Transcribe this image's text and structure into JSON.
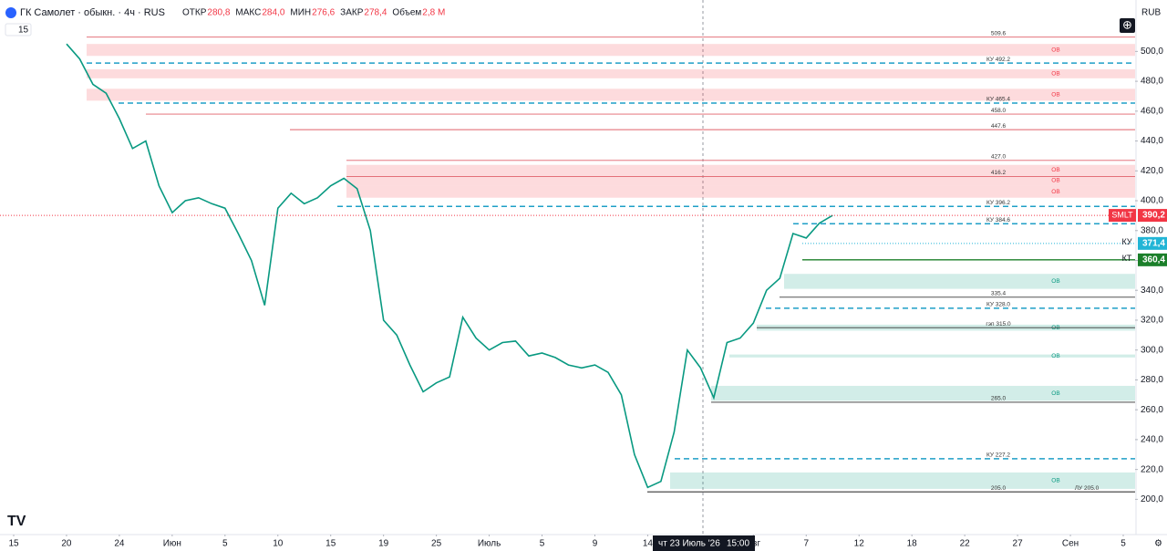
{
  "chart_data": {
    "type": "line",
    "title": "ГК Самолет · обыкн. · 4ч · RUS",
    "ohlc": [
      {
        "label": "ОТКР",
        "value": "280,8"
      },
      {
        "label": "МАКС",
        "value": "284,0"
      },
      {
        "label": "МИН",
        "value": "276,6"
      },
      {
        "label": "ЗАКР",
        "value": "278,4"
      },
      {
        "label": "Объем",
        "value": "2,8 M"
      }
    ],
    "indicator_count": "15",
    "currency": "RUB",
    "crosshair": {
      "date": "чт 23 Июль '26",
      "time": "15:00"
    },
    "categories": [
      "15",
      null,
      null,
      null,
      "20",
      null,
      null,
      null,
      "24",
      null,
      null,
      null,
      "Июн",
      null,
      null,
      null,
      "5",
      null,
      null,
      null,
      "10",
      null,
      null,
      null,
      "15",
      null,
      null,
      null,
      "19",
      null,
      null,
      null,
      "25",
      null,
      null,
      null,
      "Июль",
      null,
      null,
      null,
      "5",
      null,
      null,
      null,
      "9",
      null,
      null,
      null,
      "14",
      null,
      null,
      null,
      null,
      null,
      null,
      null,
      "Авг",
      null,
      null,
      null,
      "7",
      null,
      null,
      null,
      "12",
      null,
      null,
      null,
      "18",
      null,
      null,
      null,
      "22",
      null,
      null,
      null,
      "27",
      null,
      null,
      null,
      "Сен",
      null,
      null,
      null,
      "5"
    ],
    "series": [
      {
        "name": "SMLT",
        "color": "#089981",
        "values": [
          null,
          null,
          null,
          null,
          505,
          495,
          478,
          472,
          455,
          435,
          440,
          410,
          392,
          400,
          402,
          398,
          395,
          378,
          360,
          330,
          395,
          405,
          398,
          402,
          410,
          415,
          408,
          380,
          320,
          310,
          290,
          272,
          278,
          282,
          322,
          308,
          300,
          305,
          306,
          296,
          298,
          295,
          290,
          288,
          290,
          285,
          270,
          230,
          208,
          212,
          245,
          300,
          288,
          268,
          305,
          308,
          318,
          340,
          348,
          378,
          375,
          385,
          390.2,
          null,
          null,
          null,
          null,
          null,
          null,
          null,
          null,
          null,
          null,
          null,
          null,
          null,
          null,
          null,
          null,
          null,
          null,
          null,
          null,
          null,
          null
        ]
      }
    ],
    "ylim": [
      177,
      521
    ],
    "yticks": [
      {
        "value": 200,
        "label": "200,0"
      },
      {
        "value": 220,
        "label": "220,0"
      },
      {
        "value": 240,
        "label": "240,0"
      },
      {
        "value": 260,
        "label": "260,0"
      },
      {
        "value": 280,
        "label": "280,0"
      },
      {
        "value": 300,
        "label": "300,0"
      },
      {
        "value": 320,
        "label": "320,0"
      },
      {
        "value": 340,
        "label": "340,0"
      },
      {
        "value": 360,
        "label": "360,0"
      },
      {
        "value": 380,
        "label": "380,0"
      },
      {
        "value": 400,
        "label": "400,0"
      },
      {
        "value": 420,
        "label": "420,0"
      },
      {
        "value": 440,
        "label": "440,0"
      },
      {
        "value": 460,
        "label": "460,0"
      },
      {
        "value": 480,
        "label": "480,0"
      },
      {
        "value": 500,
        "label": "500,0"
      }
    ],
    "levels": [
      {
        "value": 509.6,
        "label": "509.6",
        "color": "#e0606a",
        "dashed": false
      },
      {
        "value": 492.2,
        "label": "КУ 492.2",
        "color": "#1e9fc7",
        "dashed": true
      },
      {
        "value": 465.4,
        "label": "КУ 465.4",
        "color": "#1e9fc7",
        "dashed": true
      },
      {
        "value": 458.0,
        "label": "458.0",
        "color": "#e0606a",
        "dashed": false
      },
      {
        "value": 447.6,
        "label": "447.6",
        "color": "#e0606a",
        "dashed": false
      },
      {
        "value": 427.0,
        "label": "427.0",
        "color": "#e0606a",
        "dashed": false
      },
      {
        "value": 416.2,
        "label": "416.2",
        "color": "#e0606a",
        "dashed": false
      },
      {
        "value": 396.2,
        "label": "КУ 396.2",
        "color": "#1e9fc7",
        "dashed": true
      },
      {
        "value": 384.6,
        "label": "КУ 384.6",
        "color": "#1e9fc7",
        "dashed": true
      },
      {
        "value": 335.4,
        "label": "335.4",
        "color": "#555555",
        "dashed": false
      },
      {
        "value": 328.0,
        "label": "КУ 328.0",
        "color": "#1e9fc7",
        "dashed": true
      },
      {
        "value": 315.0,
        "label": "гэп 315.0",
        "color": "#333333",
        "dashed": false
      },
      {
        "value": 265.0,
        "label": "265.0",
        "color": "#333333",
        "dashed": false
      },
      {
        "value": 227.2,
        "label": "КУ 227.2",
        "color": "#1e9fc7",
        "dashed": true
      },
      {
        "value": 205.0,
        "label": "205.0",
        "color": "#333333",
        "dashed": false
      },
      {
        "value": 205.0,
        "label": "ЛУ 205.0",
        "color": "#333333",
        "dashed": false
      }
    ],
    "zones": [
      {
        "from": 497,
        "to": 505,
        "label": "OB",
        "color": "#f23645"
      },
      {
        "from": 482,
        "to": 488,
        "label": "OB",
        "color": "#f23645"
      },
      {
        "from": 467,
        "to": 475,
        "label": "OB",
        "color": "#f23645"
      },
      {
        "from": 417,
        "to": 424,
        "label": "OB",
        "color": "#f23645"
      },
      {
        "from": 410,
        "to": 417,
        "label": "OB",
        "color": "#f23645"
      },
      {
        "from": 402,
        "to": 410,
        "label": "OB",
        "color": "#f23645"
      },
      {
        "from": 341,
        "to": 351,
        "label": "OB",
        "color": "#089981"
      },
      {
        "from": 313,
        "to": 317,
        "label": "OB",
        "color": "#089981"
      },
      {
        "from": 295,
        "to": 297,
        "label": "OB",
        "color": "#089981"
      },
      {
        "from": 266,
        "to": 276,
        "label": "OB",
        "color": "#089981"
      },
      {
        "from": 207,
        "to": 218,
        "label": "OB",
        "color": "#089981"
      }
    ],
    "price_labels": [
      {
        "name": "SMLT",
        "value": 390.2,
        "label": "390,2",
        "color": "#f23645"
      },
      {
        "name": "КУ",
        "value": 371.4,
        "label": "371,4",
        "color": "#22b5d6"
      },
      {
        "name": "КТ",
        "value": 360.4,
        "label": "360,4",
        "color": "#1b7f2a"
      }
    ]
  }
}
